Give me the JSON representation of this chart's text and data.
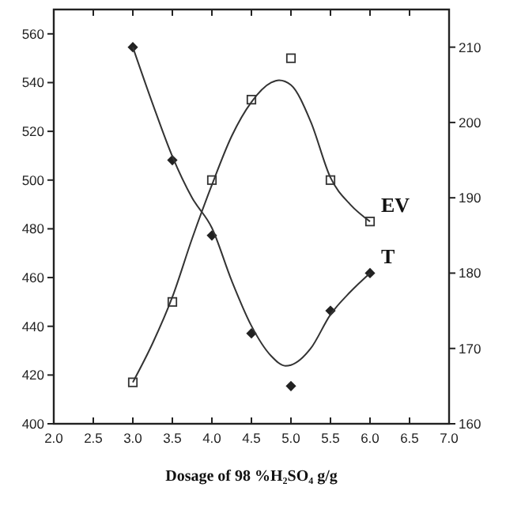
{
  "chart_data": {
    "type": "scatter",
    "xlabel": "Dosage of 98 %H₂SO₄  g/g",
    "xlim": [
      2,
      7
    ],
    "xticks": [
      {
        "value": 2,
        "label": "2.0"
      },
      {
        "value": 2.5,
        "label": "2.5"
      },
      {
        "value": 3,
        "label": "3.0"
      },
      {
        "value": 3.5,
        "label": "3.5"
      },
      {
        "value": 4,
        "label": "4.0"
      },
      {
        "value": 4.5,
        "label": "4.5"
      },
      {
        "value": 5,
        "label": "5.0"
      },
      {
        "value": 5.5,
        "label": "5.5"
      },
      {
        "value": 6,
        "label": "6.0"
      },
      {
        "value": 6.5,
        "label": "6.5"
      },
      {
        "value": 7,
        "label": "7.0"
      }
    ],
    "ylim": [
      400,
      570
    ],
    "yticks": [
      400,
      420,
      440,
      460,
      480,
      500,
      520,
      540,
      560
    ],
    "y2lim": [
      160,
      215
    ],
    "y2ticks": [
      160,
      170,
      180,
      190,
      200,
      210
    ],
    "grid": false,
    "series": [
      {
        "name": "EV",
        "marker": "square",
        "color": "#333333",
        "x": [
          3,
          3.5,
          4,
          4.5,
          5,
          5.5,
          6
        ],
        "values": [
          417,
          450,
          500,
          533,
          550,
          500,
          483
        ]
      },
      {
        "type": "line",
        "marker": "none",
        "color": "#333333",
        "x": [
          3,
          3.25,
          3.5,
          3.75,
          4,
          4.25,
          4.5,
          4.75,
          4.85,
          5,
          5.25,
          5.5,
          5.75,
          6
        ],
        "values": [
          417,
          433,
          452,
          476,
          498,
          518,
          532,
          540,
          541,
          539,
          524,
          501,
          490,
          483
        ]
      },
      {
        "name": "T",
        "marker": "diamond",
        "axis": "y2",
        "color": "#222222",
        "x": [
          3,
          3.5,
          4,
          4.5,
          5,
          5.5,
          6
        ],
        "values": [
          210,
          195,
          185,
          172,
          165,
          175,
          180
        ]
      },
      {
        "type": "line",
        "marker": "none",
        "axis": "y2",
        "color": "#333333",
        "x": [
          3,
          3.25,
          3.5,
          3.75,
          4,
          4.25,
          4.5,
          4.75,
          4.93,
          5,
          5.25,
          5.5,
          5.75,
          6
        ],
        "values": [
          210,
          202.5,
          195.5,
          190,
          186,
          179,
          173,
          169,
          167.7,
          167.8,
          170,
          174.5,
          177.5,
          180
        ]
      }
    ]
  }
}
